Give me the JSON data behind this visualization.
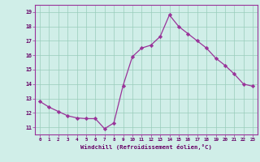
{
  "x": [
    0,
    1,
    2,
    3,
    4,
    5,
    6,
    7,
    8,
    9,
    10,
    11,
    12,
    13,
    14,
    15,
    16,
    17,
    18,
    19,
    20,
    21,
    22,
    23
  ],
  "y": [
    12.8,
    12.4,
    12.1,
    11.8,
    11.65,
    11.6,
    11.6,
    10.9,
    11.3,
    13.9,
    15.9,
    16.5,
    16.7,
    17.3,
    18.8,
    18.0,
    17.5,
    17.0,
    16.5,
    15.8,
    15.3,
    14.7,
    14.0,
    13.85
  ],
  "xlabel": "Windchill (Refroidissement éolien,°C)",
  "xtick_labels": [
    "0",
    "1",
    "2",
    "3",
    "4",
    "5",
    "6",
    "7",
    "8",
    "9",
    "10",
    "11",
    "12",
    "13",
    "14",
    "15",
    "16",
    "17",
    "18",
    "19",
    "20",
    "21",
    "22",
    "23"
  ],
  "ytick_labels": [
    "11",
    "12",
    "13",
    "14",
    "15",
    "16",
    "17",
    "18",
    "19"
  ],
  "yticks": [
    11,
    12,
    13,
    14,
    15,
    16,
    17,
    18,
    19
  ],
  "ylim": [
    10.5,
    19.5
  ],
  "xlim": [
    -0.5,
    23.5
  ],
  "line_color": "#993399",
  "marker_color": "#993399",
  "bg_color": "#d0eee8",
  "grid_color": "#99ccbb",
  "xlabel_color": "#660066",
  "tick_color": "#660066"
}
